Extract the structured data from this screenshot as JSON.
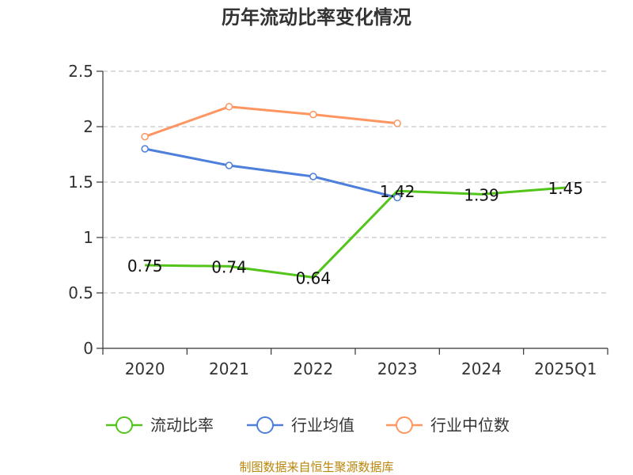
{
  "chart_data": {
    "type": "line",
    "title": "历年流动比率变化情况",
    "categories": [
      "2020",
      "2021",
      "2022",
      "2023",
      "2024",
      "2025Q1"
    ],
    "ylim": [
      0,
      2.5
    ],
    "yticks": [
      "0",
      "0.5",
      "1",
      "1.5",
      "2",
      "2.5"
    ],
    "grid": true,
    "legend_position": "bottom",
    "series": [
      {
        "name": "流动比率",
        "color": "#52c41a",
        "values": [
          0.75,
          0.74,
          0.64,
          1.42,
          1.39,
          1.45
        ],
        "labels": [
          "0.75",
          "0.74",
          "0.64",
          "1.42",
          "1.39",
          "1.45"
        ],
        "show_markers": false
      },
      {
        "name": "行业均值",
        "color": "#4e7fdb",
        "values": [
          1.8,
          1.65,
          1.55,
          1.36,
          null,
          null
        ],
        "show_markers": true
      },
      {
        "name": "行业中位数",
        "color": "#ff9560",
        "values": [
          1.91,
          2.18,
          2.11,
          2.03,
          null,
          null
        ],
        "show_markers": true
      }
    ]
  },
  "footer": {
    "source": "制图数据来自恒生聚源数据库"
  }
}
